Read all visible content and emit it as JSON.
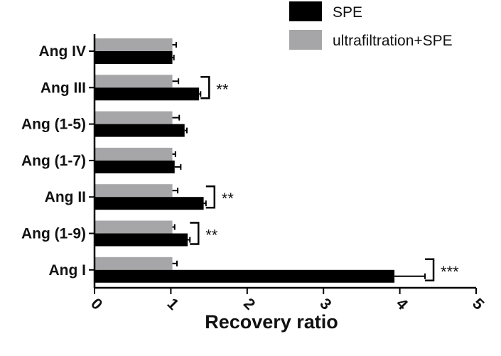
{
  "chart_data": {
    "type": "bar",
    "orientation": "horizontal",
    "categories": [
      "Ang IV",
      "Ang III",
      "Ang (1-5)",
      "Ang (1-7)",
      "Ang II",
      "Ang (1-9)",
      "Ang I"
    ],
    "series": [
      {
        "name": "SPE",
        "color": "#000000",
        "values": [
          1.02,
          1.37,
          1.18,
          1.05,
          1.43,
          1.22,
          3.93
        ],
        "errors": [
          0.02,
          0.02,
          0.03,
          0.08,
          0.03,
          0.03,
          0.4
        ]
      },
      {
        "name": "ultrafiltration+SPE",
        "color": "#a6a6a8",
        "values": [
          1.02,
          1.02,
          1.02,
          1.02,
          1.02,
          1.02,
          1.02
        ],
        "errors": [
          0.05,
          0.08,
          0.09,
          0.04,
          0.07,
          0.03,
          0.06
        ]
      }
    ],
    "significance": [
      {
        "category": "Ang III",
        "label": "**"
      },
      {
        "category": "Ang II",
        "label": "**"
      },
      {
        "category": "Ang (1-9)",
        "label": "**"
      },
      {
        "category": "Ang I",
        "label": "***"
      }
    ],
    "xlabel": "Recovery  ratio",
    "ylabel": "",
    "xlim": [
      0,
      5
    ],
    "xticks": [
      "0",
      "1",
      "2",
      "3",
      "4",
      "5"
    ],
    "grid": false,
    "legend_position": "top-right"
  }
}
